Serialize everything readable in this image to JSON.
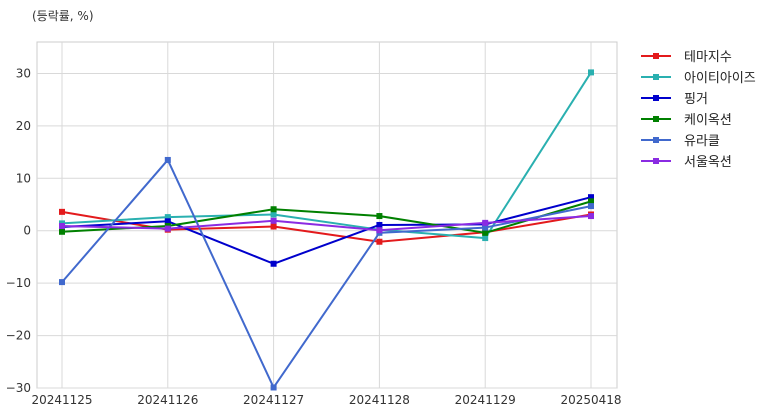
{
  "chart_data": {
    "type": "line",
    "unit_label": "(등락률, %)",
    "categories": [
      "20241125",
      "20241126",
      "20241127",
      "20241128",
      "20241129",
      "20250418"
    ],
    "ylim": [
      -30,
      36
    ],
    "yticks": [
      -30,
      -20,
      -10,
      0,
      10,
      20,
      30
    ],
    "grid": true,
    "legend_position": "right",
    "series": [
      {
        "name": "테마지수",
        "color": "#e31a1c",
        "values": [
          3.6,
          0.2,
          0.8,
          -2.1,
          -0.3,
          3.1
        ]
      },
      {
        "name": "아이티아이즈",
        "color": "#2ab0b0",
        "values": [
          1.4,
          2.6,
          3.1,
          0.2,
          -1.4,
          30.2
        ]
      },
      {
        "name": "핑거",
        "color": "#0000cc",
        "values": [
          0.7,
          1.8,
          -6.3,
          1.1,
          1.2,
          6.4
        ]
      },
      {
        "name": "케이옥션",
        "color": "#008000",
        "values": [
          -0.2,
          0.9,
          4.1,
          2.8,
          -0.4,
          5.6
        ]
      },
      {
        "name": "유라클",
        "color": "#4169cd",
        "values": [
          -9.8,
          13.5,
          -29.9,
          -0.4,
          0.6,
          4.7
        ]
      },
      {
        "name": "서울옥션",
        "color": "#8a2be2",
        "values": [
          0.9,
          0.4,
          1.9,
          0.1,
          1.5,
          2.8
        ]
      }
    ]
  }
}
